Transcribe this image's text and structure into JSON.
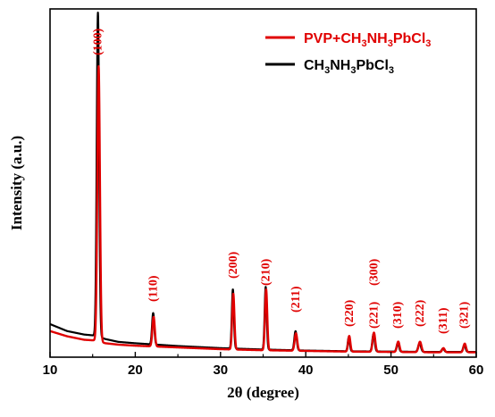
{
  "chart_data": {
    "type": "line",
    "xlabel": "2θ (degree)",
    "ylabel": "Intensity (a.u.)",
    "xlim": [
      10,
      60
    ],
    "ylim": [
      0,
      100
    ],
    "x_ticks": [
      "10",
      "20",
      "30",
      "40",
      "50",
      "60"
    ],
    "grid": false,
    "legend_position": "top-right",
    "legend": [
      {
        "name": "PVP+CH3NH3PbCl3",
        "base": "PVP+CH",
        "sub1": "3",
        "mid": "NH",
        "sub2": "3",
        "tail": "PbCl",
        "sub3": "3",
        "color": "#e00000"
      },
      {
        "name": "CH3NH3PbCl3",
        "base": "CH",
        "sub1": "3",
        "mid": "NH",
        "sub2": "3",
        "tail": "PbCl",
        "sub3": "3",
        "color": "#000000"
      }
    ],
    "peak_labels": [
      {
        "text": "(100)",
        "x": 15.6
      },
      {
        "text": "(110)",
        "x": 22.1
      },
      {
        "text": "(200)",
        "x": 31.5
      },
      {
        "text": "(210)",
        "x": 35.3
      },
      {
        "text": "(211)",
        "x": 38.8
      },
      {
        "text": "(220)",
        "x": 45.1
      },
      {
        "text": "(221)",
        "x": 48.0
      },
      {
        "text": "(300)",
        "x": 48.0
      },
      {
        "text": "(310)",
        "x": 50.8
      },
      {
        "text": "(222)",
        "x": 53.4
      },
      {
        "text": "(311)",
        "x": 56.1
      },
      {
        "text": "(321)",
        "x": 58.6
      }
    ],
    "series": [
      {
        "name": "CH3NH3PbCl3",
        "color": "#000000",
        "background": [
          [
            10,
            9.5
          ],
          [
            12,
            7.5
          ],
          [
            14,
            6.5
          ],
          [
            15.3,
            6.2
          ],
          [
            16.5,
            5.2
          ],
          [
            18,
            4.4
          ],
          [
            20,
            4.0
          ],
          [
            25,
            3.2
          ],
          [
            30,
            2.6
          ],
          [
            35,
            2.2
          ],
          [
            40,
            1.9
          ],
          [
            45,
            1.7
          ],
          [
            50,
            1.6
          ],
          [
            55,
            1.5
          ],
          [
            60,
            1.5
          ]
        ],
        "peaks": [
          {
            "x": 15.62,
            "h": 93,
            "w": 0.14
          },
          {
            "x": 22.1,
            "h": 9,
            "w": 0.13
          },
          {
            "x": 31.45,
            "h": 17,
            "w": 0.12
          },
          {
            "x": 35.3,
            "h": 18,
            "w": 0.12
          },
          {
            "x": 38.8,
            "h": 5.5,
            "w": 0.14
          },
          {
            "x": 45.05,
            "h": 4.0,
            "w": 0.12
          },
          {
            "x": 47.95,
            "h": 5.0,
            "w": 0.14
          },
          {
            "x": 50.8,
            "h": 2.5,
            "w": 0.14
          },
          {
            "x": 53.35,
            "h": 2.5,
            "w": 0.16
          },
          {
            "x": 56.1,
            "h": 1.0,
            "w": 0.14
          },
          {
            "x": 58.6,
            "h": 2.0,
            "w": 0.14
          }
        ]
      },
      {
        "name": "PVP+CH3NH3PbCl3",
        "color": "#e00000",
        "background": [
          [
            10,
            7.5
          ],
          [
            12,
            6.0
          ],
          [
            14,
            5.0
          ],
          [
            15.3,
            4.8
          ],
          [
            16.5,
            4.0
          ],
          [
            18,
            3.6
          ],
          [
            20,
            3.3
          ],
          [
            25,
            2.8
          ],
          [
            30,
            2.3
          ],
          [
            35,
            2.0
          ],
          [
            40,
            1.8
          ],
          [
            45,
            1.6
          ],
          [
            50,
            1.5
          ],
          [
            55,
            1.4
          ],
          [
            60,
            1.4
          ]
        ],
        "peaks": [
          {
            "x": 15.7,
            "h": 79,
            "w": 0.15
          },
          {
            "x": 22.15,
            "h": 8.5,
            "w": 0.14
          },
          {
            "x": 31.5,
            "h": 16,
            "w": 0.13
          },
          {
            "x": 35.35,
            "h": 17.5,
            "w": 0.13
          },
          {
            "x": 38.85,
            "h": 5.0,
            "w": 0.15
          },
          {
            "x": 45.1,
            "h": 4.5,
            "w": 0.13
          },
          {
            "x": 48.0,
            "h": 5.5,
            "w": 0.15
          },
          {
            "x": 50.85,
            "h": 3.0,
            "w": 0.15
          },
          {
            "x": 53.4,
            "h": 3.0,
            "w": 0.17
          },
          {
            "x": 56.15,
            "h": 1.2,
            "w": 0.15
          },
          {
            "x": 58.65,
            "h": 2.5,
            "w": 0.15
          }
        ]
      }
    ]
  }
}
